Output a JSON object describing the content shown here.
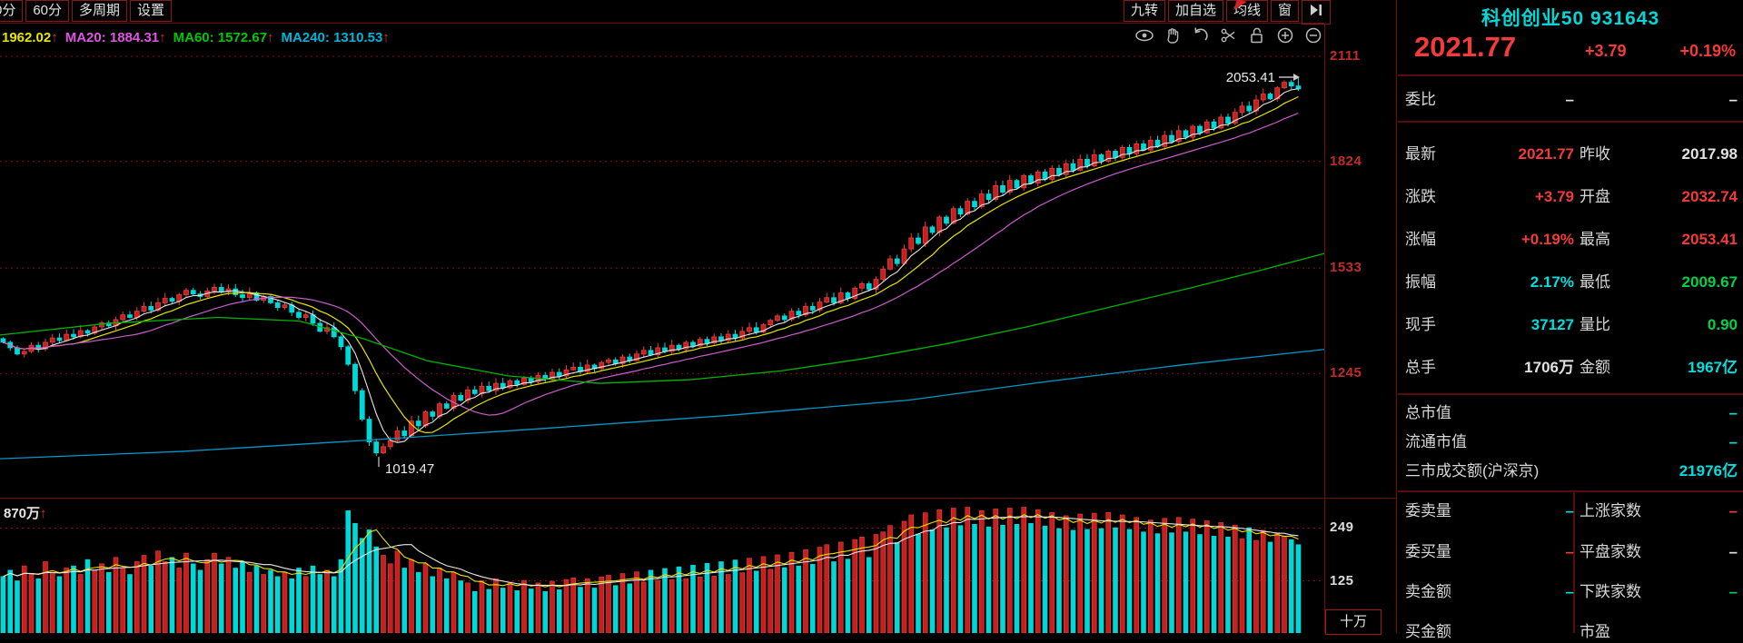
{
  "toolbar": {
    "left_tabs": [
      "0分",
      "60分",
      "多周期",
      "设置"
    ],
    "right_tabs": [
      "九转",
      "加自选",
      "均线",
      "窗"
    ],
    "right_icons": [
      "jump-to-latest"
    ],
    "chart_icons": [
      "eye",
      "hand",
      "undo",
      "scissors",
      "lock-open",
      "zoom-in",
      "zoom-out"
    ]
  },
  "ma_info": [
    {
      "label": "",
      "value": "1962.02",
      "arrow": "↑",
      "color": "#e6e600"
    },
    {
      "label": "MA20: ",
      "value": "1884.31",
      "arrow": "↑",
      "color": "#e055e0"
    },
    {
      "label": "MA60: ",
      "value": "1572.67",
      "arrow": "↑",
      "color": "#00c800"
    },
    {
      "label": "MA240: ",
      "value": "1310.53",
      "arrow": "↑",
      "color": "#00b4d8"
    }
  ],
  "chart_data": {
    "type": "candlestick",
    "price_axis_labels": [
      "2111",
      "1824",
      "1533",
      "1245"
    ],
    "price_axis_values": [
      2111,
      1824,
      1533,
      1245
    ],
    "volume_axis_labels": [
      "249",
      "125"
    ],
    "volume_axis_values": [
      249,
      125
    ],
    "volume_unit": "十万",
    "high_annotation": "2053.41",
    "low_annotation": "1019.47",
    "volume_pane_label": "870万",
    "volume_pane_arrow": "↑",
    "up_color": "#c81e1e",
    "up_stroke": "#e84040",
    "down_color": "#00d8d8",
    "ma_colors": {
      "ma5": "#e8e8e8",
      "ma10": "#e6e600",
      "ma20": "#cc5ccc",
      "ma60": "#00b400",
      "ma240": "#0098c8"
    },
    "closes": [
      1330,
      1315,
      1298,
      1305,
      1322,
      1312,
      1330,
      1342,
      1335,
      1352,
      1345,
      1362,
      1355,
      1372,
      1383,
      1375,
      1392,
      1405,
      1398,
      1415,
      1428,
      1418,
      1438,
      1450,
      1442,
      1460,
      1472,
      1462,
      1455,
      1470,
      1480,
      1468,
      1476,
      1460,
      1452,
      1465,
      1445,
      1455,
      1438,
      1425,
      1432,
      1412,
      1398,
      1405,
      1382,
      1360,
      1370,
      1345,
      1318,
      1270,
      1198,
      1120,
      1058,
      1028,
      1045,
      1062,
      1088,
      1075,
      1115,
      1102,
      1140,
      1128,
      1162,
      1150,
      1185,
      1172,
      1200,
      1190,
      1210,
      1198,
      1218,
      1206,
      1225,
      1215,
      1232,
      1222,
      1240,
      1230,
      1248,
      1238,
      1255,
      1262,
      1250,
      1268,
      1258,
      1275,
      1282,
      1272,
      1290,
      1280,
      1298,
      1308,
      1296,
      1315,
      1305,
      1322,
      1312,
      1330,
      1320,
      1338,
      1328,
      1345,
      1335,
      1352,
      1342,
      1360,
      1370,
      1358,
      1378,
      1390,
      1402,
      1392,
      1415,
      1405,
      1428,
      1418,
      1440,
      1452,
      1438,
      1465,
      1450,
      1478,
      1490,
      1475,
      1502,
      1530,
      1558,
      1545,
      1585,
      1615,
      1600,
      1645,
      1630,
      1672,
      1655,
      1695,
      1680,
      1715,
      1700,
      1735,
      1720,
      1758,
      1740,
      1772,
      1752,
      1785,
      1765,
      1795,
      1775,
      1805,
      1788,
      1818,
      1800,
      1830,
      1812,
      1842,
      1825,
      1852,
      1835,
      1862,
      1845,
      1872,
      1855,
      1882,
      1865,
      1895,
      1878,
      1908,
      1890,
      1920,
      1902,
      1932,
      1915,
      1945,
      1928,
      1958,
      1975,
      1962,
      1992,
      2008,
      1995,
      2025,
      2040,
      2030,
      2021.77
    ],
    "volumes": [
      135,
      150,
      125,
      160,
      140,
      130,
      170,
      145,
      135,
      155,
      160,
      140,
      175,
      150,
      165,
      145,
      180,
      155,
      140,
      170,
      185,
      160,
      195,
      170,
      180,
      155,
      190,
      165,
      150,
      175,
      190,
      165,
      180,
      155,
      170,
      145,
      160,
      140,
      150,
      135,
      145,
      130,
      155,
      135,
      160,
      140,
      150,
      135,
      175,
      290,
      260,
      225,
      245,
      205,
      185,
      165,
      195,
      155,
      175,
      145,
      165,
      135,
      155,
      130,
      145,
      125,
      120,
      100,
      125,
      105,
      130,
      108,
      122,
      102,
      126,
      106,
      120,
      100,
      124,
      104,
      128,
      132,
      110,
      130,
      108,
      134,
      138,
      114,
      142,
      118,
      146,
      122,
      150,
      126,
      154,
      128,
      158,
      130,
      162,
      134,
      166,
      136,
      170,
      140,
      174,
      144,
      178,
      148,
      182,
      152,
      186,
      156,
      192,
      160,
      198,
      164,
      204,
      210,
      170,
      216,
      176,
      222,
      228,
      180,
      234,
      240,
      255,
      215,
      265,
      280,
      235,
      285,
      245,
      292,
      250,
      296,
      255,
      298,
      258,
      290,
      252,
      294,
      256,
      296,
      258,
      298,
      260,
      292,
      254,
      286,
      248,
      278,
      244,
      282,
      246,
      284,
      248,
      286,
      250,
      280,
      246,
      274,
      240,
      268,
      236,
      272,
      238,
      274,
      240,
      270,
      234,
      266,
      230,
      262,
      228,
      256,
      224,
      250,
      220,
      244,
      216,
      238,
      230,
      222,
      210
    ],
    "last_close": 2021.77,
    "low_value": 1019.47,
    "high_value": 2053.41
  },
  "panel": {
    "title": "科创创业50 931643",
    "price": "2021.77",
    "change": "+3.79",
    "change_pct": "+0.19%",
    "bid_row": {
      "l1": "委比",
      "v1": "–",
      "c1": "white",
      "l2": "",
      "v2": "–",
      "c2": "white"
    },
    "quote_rows": [
      {
        "l1": "最新",
        "v1": "2021.77",
        "c1": "red",
        "l2": "昨收",
        "v2": "2017.98",
        "c2": "white"
      },
      {
        "l1": "涨跌",
        "v1": "+3.79",
        "c1": "red",
        "l2": "开盘",
        "v2": "2032.74",
        "c2": "red"
      },
      {
        "l1": "涨幅",
        "v1": "+0.19%",
        "c1": "red",
        "l2": "最高",
        "v2": "2053.41",
        "c2": "red"
      },
      {
        "l1": "振幅",
        "v1": "2.17%",
        "c1": "cyan",
        "l2": "最低",
        "v2": "2009.67",
        "c2": "green"
      },
      {
        "l1": "现手",
        "v1": "37127",
        "c1": "cyan",
        "l2": "量比",
        "v2": "0.90",
        "c2": "green"
      },
      {
        "l1": "总手",
        "v1": "1706万",
        "c1": "white",
        "l2": "金额",
        "v2": "1967亿",
        "c2": "cyan"
      }
    ],
    "market_rows": [
      {
        "label": "总市值",
        "value": "–",
        "c": "cyan"
      },
      {
        "label": "流通市值",
        "value": "–",
        "c": "cyan"
      },
      {
        "label": "三市成交额(沪深京)",
        "value": "21976亿",
        "c": "cyan"
      }
    ],
    "order_rows": [
      {
        "l1": "委卖量",
        "v1": "–",
        "c1": "cyan",
        "l2": "上涨家数",
        "v2": "–",
        "c2": "red"
      },
      {
        "l1": "委买量",
        "v1": "–",
        "c1": "red",
        "l2": "平盘家数",
        "v2": "–",
        "c2": "white"
      },
      {
        "l1": "卖金额",
        "v1": "–",
        "c1": "cyan",
        "l2": "下跌家数",
        "v2": "–",
        "c2": "green"
      },
      {
        "l1": "买金额",
        "v1": "",
        "c1": "white",
        "l2": "市盈",
        "v2": "",
        "c2": "white"
      }
    ]
  },
  "colors": {
    "red": "#f23b3b",
    "cyan": "#00dede",
    "green": "#00d24b",
    "white": "#e2e2e2"
  }
}
